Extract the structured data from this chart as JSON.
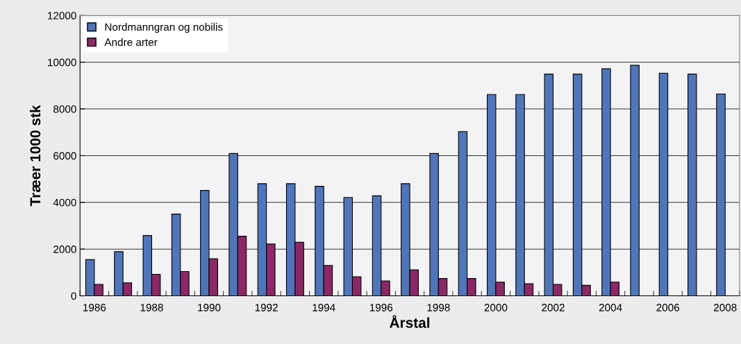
{
  "chart_data": {
    "type": "bar",
    "xlabel": "Årstal",
    "ylabel": "Træer 1000 stk",
    "categories": [
      "1986",
      null,
      "1988",
      null,
      "1990",
      null,
      "1992",
      null,
      "1994",
      null,
      "1996",
      null,
      "1998",
      null,
      "2000",
      null,
      "2002",
      null,
      "2004",
      null,
      "2006",
      null,
      "2008"
    ],
    "series": [
      {
        "name": "Nordmanngran og nobilis",
        "color": "#5075b9",
        "values": [
          1550,
          1890,
          2580,
          3500,
          4510,
          6090,
          4800,
          4800,
          4690,
          4210,
          4280,
          4800,
          6090,
          7030,
          8620,
          8620,
          9490,
          9490,
          9720,
          9870,
          9530,
          9490,
          8640
        ]
      },
      {
        "name": "Andre arter",
        "color": "#8b2866",
        "values": [
          490,
          560,
          920,
          1040,
          1590,
          2550,
          2220,
          2290,
          1300,
          820,
          640,
          1110,
          740,
          740,
          590,
          520,
          490,
          450,
          590,
          null,
          null,
          null,
          null
        ]
      }
    ],
    "ylim": [
      0,
      12000
    ],
    "yticks": [
      0,
      2000,
      4000,
      6000,
      8000,
      10000,
      12000
    ],
    "grid": "y",
    "legend": "top left"
  }
}
